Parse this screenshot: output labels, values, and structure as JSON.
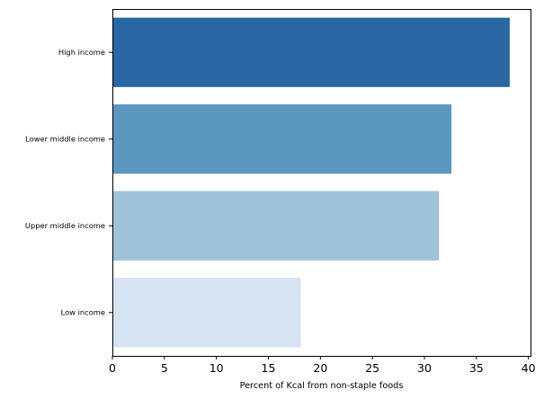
{
  "chart_data": {
    "type": "bar",
    "orientation": "horizontal",
    "title": "",
    "xlabel": "Percent of Kcal from non-staple foods",
    "ylabel": "",
    "categories": [
      "High income",
      "Lower middle income",
      "Upper middle income",
      "Low income"
    ],
    "values": [
      38.2,
      32.6,
      31.4,
      18.1
    ],
    "colors": [
      "#2a67a2",
      "#5b97bf",
      "#9fc4d9",
      "#d5e3f2"
    ],
    "xlim": [
      0,
      40.2
    ],
    "xticks": [
      0,
      5,
      10,
      15,
      20,
      25,
      30,
      35,
      40
    ],
    "grid": false,
    "legend": "none"
  }
}
